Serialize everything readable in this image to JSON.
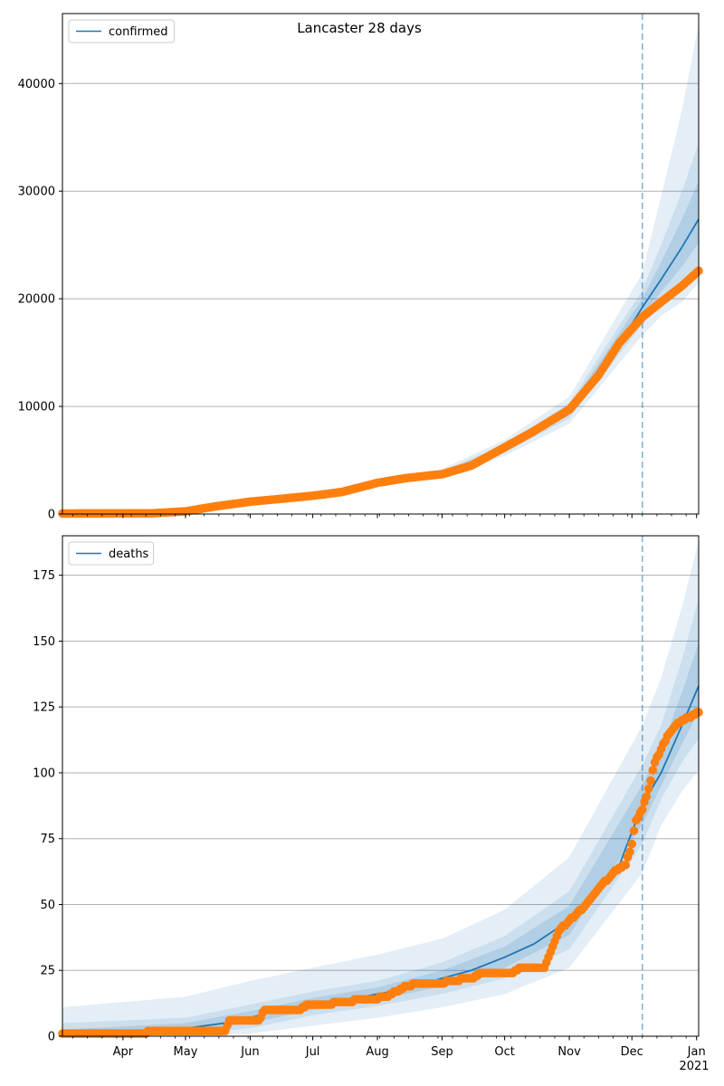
{
  "figure": {
    "title": "Lancaster 28 days",
    "year_label": "2021",
    "month_ticks": [
      "Apr",
      "May",
      "Jun",
      "Jul",
      "Aug",
      "Sep",
      "Oct",
      "Nov",
      "Dec",
      "Jan"
    ]
  },
  "colors": {
    "model_line": "#1f77b4",
    "observed_points": "#ff7f0e",
    "band": "#1f77b4",
    "grid": "#b0b0b0",
    "vline": "#1f77b4"
  },
  "chart_data": [
    {
      "type": "line",
      "legend": "confirmed",
      "legend_position": "upper left",
      "grid": "y",
      "x_axis": "date",
      "xlim": [
        "2020-03-03",
        "2021-01-02"
      ],
      "ylim": [
        0,
        46500
      ],
      "yticks": [
        0,
        10000,
        20000,
        30000,
        40000
      ],
      "forecast_start": "2020-12-06",
      "model": {
        "name": "confirmed",
        "points": [
          [
            "2020-03-03",
            50
          ],
          [
            "2020-04-15",
            80
          ],
          [
            "2020-05-01",
            280
          ],
          [
            "2020-05-15",
            650
          ],
          [
            "2020-06-01",
            1150
          ],
          [
            "2020-06-15",
            1450
          ],
          [
            "2020-07-01",
            1750
          ],
          [
            "2020-07-15",
            2100
          ],
          [
            "2020-08-01",
            2950
          ],
          [
            "2020-08-15",
            3400
          ],
          [
            "2020-09-01",
            3750
          ],
          [
            "2020-09-15",
            4700
          ],
          [
            "2020-10-01",
            6100
          ],
          [
            "2020-10-15",
            7600
          ],
          [
            "2020-11-01",
            9600
          ],
          [
            "2020-11-15",
            12800
          ],
          [
            "2020-11-25",
            15800
          ],
          [
            "2020-12-06",
            19200
          ],
          [
            "2020-12-15",
            21800
          ],
          [
            "2020-12-25",
            24800
          ],
          [
            "2021-01-02",
            27400
          ]
        ]
      },
      "bands": [
        {
          "date": "2020-03-03",
          "p10": 50,
          "p90": 50,
          "p2": 50,
          "p98": 50
        },
        {
          "date": "2020-05-01",
          "p10": 250,
          "p90": 310,
          "p2": 220,
          "p98": 340
        },
        {
          "date": "2020-06-01",
          "p10": 1070,
          "p90": 1230,
          "p2": 1000,
          "p98": 1300
        },
        {
          "date": "2020-07-01",
          "p10": 1640,
          "p90": 1860,
          "p2": 1550,
          "p98": 1950
        },
        {
          "date": "2020-08-01",
          "p10": 2780,
          "p90": 3120,
          "p2": 2650,
          "p98": 3250
        },
        {
          "date": "2020-09-01",
          "p10": 3500,
          "p90": 4000,
          "p2": 3300,
          "p98": 4200
        },
        {
          "date": "2020-10-01",
          "p10": 5700,
          "p90": 6500,
          "p2": 5400,
          "p98": 6900
        },
        {
          "date": "2020-11-01",
          "p10": 8900,
          "p90": 10300,
          "p2": 8400,
          "p98": 10900
        },
        {
          "date": "2020-12-06",
          "p10": 17600,
          "p90": 20800,
          "p2": 16600,
          "p98": 22400
        },
        {
          "date": "2020-12-15",
          "p10": 19500,
          "p90": 25000,
          "p2": 18400,
          "p98": 29500
        },
        {
          "date": "2020-12-25",
          "p10": 21200,
          "p90": 30000,
          "p2": 19700,
          "p98": 37500
        },
        {
          "date": "2021-01-02",
          "p10": 23000,
          "p90": 34500,
          "p2": 21500,
          "p98": 45500
        }
      ],
      "observed": {
        "name": "observed",
        "points": [
          [
            "2020-03-03",
            50
          ],
          [
            "2020-04-15",
            70
          ],
          [
            "2020-05-01",
            250
          ],
          [
            "2020-05-15",
            700
          ],
          [
            "2020-06-01",
            1150
          ],
          [
            "2020-06-15",
            1400
          ],
          [
            "2020-07-01",
            1700
          ],
          [
            "2020-07-15",
            2050
          ],
          [
            "2020-08-01",
            2900
          ],
          [
            "2020-08-15",
            3350
          ],
          [
            "2020-09-01",
            3700
          ],
          [
            "2020-09-15",
            4500
          ],
          [
            "2020-10-01",
            6200
          ],
          [
            "2020-10-15",
            7700
          ],
          [
            "2020-11-01",
            9700
          ],
          [
            "2020-11-15",
            12900
          ],
          [
            "2020-11-25",
            15900
          ],
          [
            "2020-12-06",
            18300
          ],
          [
            "2020-12-15",
            19700
          ],
          [
            "2020-12-25",
            21200
          ],
          [
            "2021-01-02",
            22600
          ]
        ]
      }
    },
    {
      "type": "line",
      "legend": "deaths",
      "legend_position": "upper left",
      "grid": "y",
      "x_axis": "date",
      "xlim": [
        "2020-03-03",
        "2021-01-02"
      ],
      "ylim": [
        0,
        190
      ],
      "yticks": [
        0,
        25,
        50,
        75,
        100,
        125,
        150,
        175
      ],
      "forecast_start": "2020-12-06",
      "model": {
        "name": "deaths",
        "points": [
          [
            "2020-03-03",
            0
          ],
          [
            "2020-04-15",
            1
          ],
          [
            "2020-05-01",
            3
          ],
          [
            "2020-05-20",
            5
          ],
          [
            "2020-06-01",
            7
          ],
          [
            "2020-06-15",
            10
          ],
          [
            "2020-07-01",
            12
          ],
          [
            "2020-07-15",
            13.5
          ],
          [
            "2020-08-01",
            16
          ],
          [
            "2020-08-15",
            18
          ],
          [
            "2020-09-01",
            22
          ],
          [
            "2020-09-15",
            25
          ],
          [
            "2020-10-01",
            30
          ],
          [
            "2020-10-15",
            35
          ],
          [
            "2020-11-01",
            44
          ],
          [
            "2020-11-15",
            54
          ],
          [
            "2020-11-25",
            65
          ],
          [
            "2020-12-06",
            88
          ],
          [
            "2020-12-15",
            100
          ],
          [
            "2020-12-25",
            118
          ],
          [
            "2021-01-02",
            133
          ]
        ]
      },
      "bands": [
        {
          "date": "2020-03-03",
          "p10": 0,
          "p90": 5,
          "p2": 0,
          "p98": 11
        },
        {
          "date": "2020-05-01",
          "p10": 0.5,
          "p90": 7,
          "p2": 0,
          "p98": 15
        },
        {
          "date": "2020-06-01",
          "p10": 3,
          "p90": 12,
          "p2": 1,
          "p98": 21
        },
        {
          "date": "2020-07-01",
          "p10": 8,
          "p90": 17,
          "p2": 4,
          "p98": 26
        },
        {
          "date": "2020-08-01",
          "p10": 11.5,
          "p90": 21,
          "p2": 7,
          "p98": 31
        },
        {
          "date": "2020-09-01",
          "p10": 16,
          "p90": 28,
          "p2": 11,
          "p98": 37
        },
        {
          "date": "2020-10-01",
          "p10": 22,
          "p90": 38,
          "p2": 16,
          "p98": 48
        },
        {
          "date": "2020-11-01",
          "p10": 33,
          "p90": 55,
          "p2": 26,
          "p98": 68
        },
        {
          "date": "2020-12-06",
          "p10": 73,
          "p90": 103,
          "p2": 62,
          "p98": 118
        },
        {
          "date": "2020-12-15",
          "p10": 90,
          "p90": 118,
          "p2": 80,
          "p98": 136
        },
        {
          "date": "2020-12-25",
          "p10": 104,
          "p90": 143,
          "p2": 93,
          "p98": 163
        },
        {
          "date": "2021-01-02",
          "p10": 113,
          "p90": 166,
          "p2": 101,
          "p98": 188
        }
      ],
      "observed": {
        "name": "observed",
        "points": [
          [
            "2020-03-03",
            1
          ],
          [
            "2020-04-10",
            1
          ],
          [
            "2020-04-15",
            2
          ],
          [
            "2020-05-20",
            2
          ],
          [
            "2020-05-22",
            6
          ],
          [
            "2020-06-05",
            6
          ],
          [
            "2020-06-08",
            10
          ],
          [
            "2020-06-25",
            10
          ],
          [
            "2020-06-28",
            12
          ],
          [
            "2020-07-10",
            12
          ],
          [
            "2020-07-12",
            13
          ],
          [
            "2020-07-30",
            14
          ],
          [
            "2020-08-05",
            15
          ],
          [
            "2020-08-10",
            17
          ],
          [
            "2020-08-15",
            19
          ],
          [
            "2020-08-20",
            20
          ],
          [
            "2020-09-01",
            20
          ],
          [
            "2020-09-05",
            21
          ],
          [
            "2020-09-15",
            22
          ],
          [
            "2020-09-20",
            24
          ],
          [
            "2020-10-05",
            24
          ],
          [
            "2020-10-08",
            26
          ],
          [
            "2020-10-20",
            26
          ],
          [
            "2020-10-22",
            30
          ],
          [
            "2020-10-27",
            40
          ],
          [
            "2020-11-01",
            44
          ],
          [
            "2020-11-08",
            49
          ],
          [
            "2020-11-15",
            56
          ],
          [
            "2020-11-22",
            62
          ],
          [
            "2020-11-28",
            65
          ],
          [
            "2020-12-01",
            73
          ],
          [
            "2020-12-03",
            82
          ],
          [
            "2020-12-06",
            86
          ],
          [
            "2020-12-09",
            94
          ],
          [
            "2020-12-12",
            104
          ],
          [
            "2020-12-15",
            109
          ],
          [
            "2020-12-18",
            114
          ],
          [
            "2020-12-22",
            118
          ],
          [
            "2020-12-28",
            121
          ],
          [
            "2021-01-02",
            123
          ]
        ]
      }
    }
  ]
}
